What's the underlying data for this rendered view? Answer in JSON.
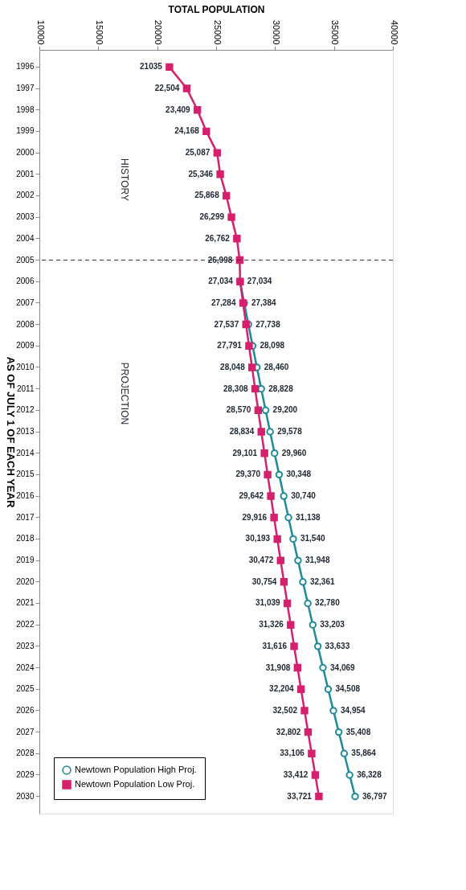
{
  "chart_data": {
    "type": "line",
    "orientation": "horizontal",
    "xlabel": "TOTAL POPULATION",
    "ylabel": "AS OF JULY 1 OF EACH YEAR",
    "categories": [
      "1996",
      "1997",
      "1998",
      "1999",
      "2000",
      "2001",
      "2002",
      "2003",
      "2004",
      "2005",
      "2006",
      "2007",
      "2008",
      "2009",
      "2010",
      "2011",
      "2012",
      "2013",
      "2014",
      "2015",
      "2016",
      "2017",
      "2018",
      "2019",
      "2020",
      "2021",
      "2022",
      "2023",
      "2024",
      "2025",
      "2026",
      "2027",
      "2028",
      "2029",
      "2030"
    ],
    "xlim": [
      10000,
      40000
    ],
    "xticks": [
      10000,
      15000,
      20000,
      25000,
      30000,
      35000,
      40000
    ],
    "grid": false,
    "legend": "bottom left",
    "line_style": "solid",
    "series": [
      {
        "name": "Newtown Population High Proj.",
        "color": "#1f8a9a",
        "marker": "circle",
        "values": [
          null,
          null,
          null,
          null,
          null,
          null,
          null,
          null,
          null,
          null,
          27034,
          27384,
          27738,
          28098,
          28460,
          28828,
          29200,
          29578,
          29960,
          30348,
          30740,
          31138,
          31540,
          31948,
          32361,
          32780,
          33203,
          33633,
          34069,
          34508,
          34954,
          35408,
          35864,
          36328,
          36797
        ],
        "value_labels": [
          null,
          null,
          null,
          null,
          null,
          null,
          null,
          null,
          null,
          null,
          "27,034",
          "27,384",
          "27,738",
          "28,098",
          "28,460",
          "28,828",
          "29,200",
          "29,578",
          "29,960",
          "30,348",
          "30,740",
          "31,138",
          "31,540",
          "31,948",
          "32,361",
          "32,780",
          "33,203",
          "33,633",
          "34,069",
          "34,508",
          "34,954",
          "35,408",
          "35,864",
          "36,328",
          "36,797"
        ]
      },
      {
        "name": "Newtown Population Low Proj.",
        "color": "#d6206e",
        "marker": "square",
        "values": [
          21035,
          22504,
          23409,
          24168,
          25087,
          25346,
          25868,
          26299,
          26762,
          26998,
          27034,
          27284,
          27537,
          27791,
          28048,
          28308,
          28570,
          28834,
          29101,
          29370,
          29642,
          29916,
          30193,
          30472,
          30754,
          31039,
          31326,
          31616,
          31908,
          32204,
          32502,
          32802,
          33106,
          33412,
          33721
        ],
        "value_labels": [
          "21035",
          "22,504",
          "23,409",
          "24,168",
          "25,087",
          "25,346",
          "25,868",
          "26,299",
          "26,762",
          "26,998",
          "27,034",
          "27,284",
          "27,537",
          "27,791",
          "28,048",
          "28,308",
          "28,570",
          "28,834",
          "29,101",
          "29,370",
          "29,642",
          "29,916",
          "30,193",
          "30,472",
          "30,754",
          "31,039",
          "31,326",
          "31,616",
          "31,908",
          "32,204",
          "32,502",
          "32,802",
          "33,106",
          "33,412",
          "33,721"
        ]
      }
    ],
    "ref_lines": [
      {
        "axis": "y",
        "value": "2005",
        "color": "#333333",
        "line_style": "dashed"
      }
    ],
    "annotations": [
      "HISTORY",
      "PROJECTION"
    ]
  }
}
